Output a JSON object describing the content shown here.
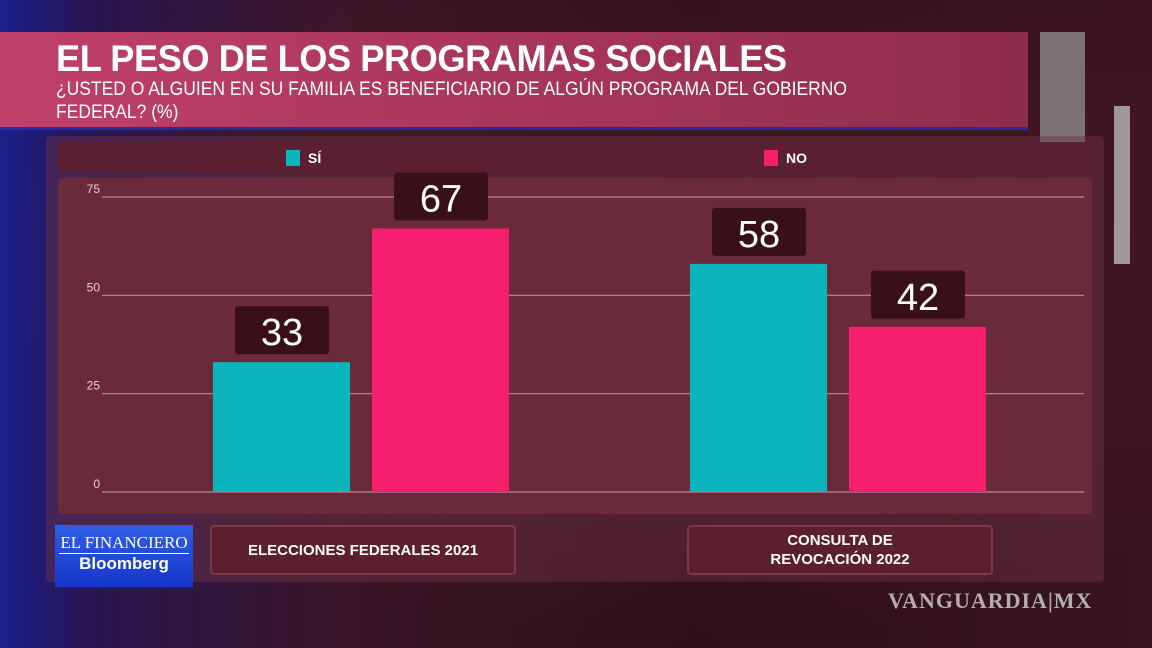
{
  "chart_data": {
    "type": "bar",
    "title": "EL PESO DE LOS PROGRAMAS SOCIALES",
    "subtitle": "¿USTED O ALGUIEN EN SU FAMILIA ES BENEFICIARIO DE ALGÚN PROGRAMA DEL GOBIERNO FEDERAL? (%)",
    "categories": [
      "ELECCIONES FEDERALES 2021",
      "CONSULTA DE REVOCACIÓN 2022"
    ],
    "series": [
      {
        "name": "SÍ",
        "color": "#0bb5bd",
        "values": [
          33,
          58
        ]
      },
      {
        "name": "NO",
        "color": "#f51f6e",
        "values": [
          67,
          42
        ]
      }
    ],
    "ylim": [
      0,
      75
    ],
    "yticks": [
      0,
      25,
      50,
      75
    ],
    "grid": true,
    "legend_placement": "top"
  },
  "branding": {
    "broadcaster_logo": "EL FINANCIERO Bloomberg",
    "broadcaster_line1": "EL FINANCIERO",
    "broadcaster_line2": "Bloomberg",
    "watermark": "VANGUARDIA|MX"
  }
}
